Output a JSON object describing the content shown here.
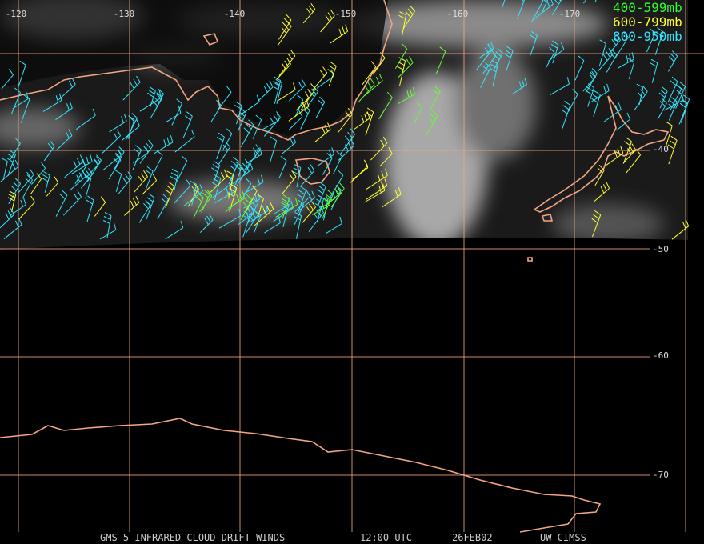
{
  "map": {
    "lon_labels": [
      "-120",
      "-130",
      "-140",
      "-150",
      "-160",
      "-170"
    ],
    "lat_labels": [
      "-40",
      "-50",
      "-60",
      "-70"
    ],
    "legend": [
      "400-599mb",
      "600-799mb",
      "800-950mb"
    ],
    "footer": {
      "product": "GMS-5 INFRARED-CLOUD DRIFT WINDS",
      "time": "12:00 UTC",
      "date": "26FEB02",
      "source": "UW-CIMSS"
    }
  }
}
